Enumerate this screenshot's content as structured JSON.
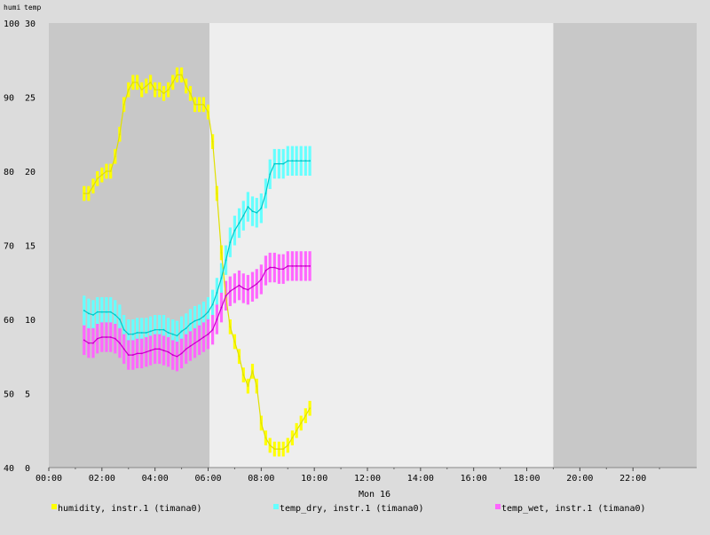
{
  "chart_data": {
    "type": "line",
    "axis_titles": {
      "left1": "humi",
      "left2": "temp"
    },
    "x_date_label": "Mon 16",
    "x_tick_labels": [
      "00:00",
      "02:00",
      "04:00",
      "06:00",
      "08:00",
      "10:00",
      "12:00",
      "14:00",
      "16:00",
      "18:00",
      "20:00",
      "22:00"
    ],
    "x_hour_range": [
      0,
      24.4
    ],
    "y_humi": {
      "ylim": [
        40,
        100
      ],
      "ticks": [
        "100",
        "90",
        "80",
        "70",
        "60",
        "50",
        "40"
      ]
    },
    "y_temp": {
      "ylim": [
        0,
        30
      ],
      "ticks": [
        "30",
        "25",
        "20",
        "15",
        "10",
        "5",
        "0"
      ]
    },
    "daylight_hours": [
      6.05,
      19.0
    ],
    "colors": {
      "background_night": "#c8c8c8",
      "background_day": "#eeeeee",
      "outer": "#dcdcdc",
      "humidity": "#ffff00",
      "humidity_line": "#e0e000",
      "temp_dry": "#66ffff",
      "temp_dry_line": "#00c8c8",
      "temp_wet": "#ff66ff",
      "temp_wet_line": "#c800c8"
    },
    "legend_position": "bottom",
    "series": [
      {
        "name": "humidity, instr.1 (timana0)",
        "axis": "humi",
        "color_key": "humidity",
        "x": [
          1.33,
          1.5,
          1.67,
          1.83,
          2.0,
          2.17,
          2.33,
          2.5,
          2.67,
          2.83,
          3.0,
          3.17,
          3.33,
          3.5,
          3.67,
          3.83,
          4.0,
          4.17,
          4.33,
          4.5,
          4.67,
          4.83,
          5.0,
          5.17,
          5.33,
          5.5,
          5.67,
          5.83,
          6.0,
          6.17,
          6.33,
          6.5,
          6.67,
          6.83,
          7.0,
          7.17,
          7.33,
          7.5,
          7.67,
          7.83,
          8.0,
          8.17,
          8.33,
          8.5,
          8.67,
          8.83,
          9.0,
          9.17,
          9.33,
          9.5,
          9.67,
          9.83
        ],
        "y": [
          77,
          77,
          78,
          79,
          79.5,
          80,
          80,
          82,
          85,
          89,
          91,
          92,
          92,
          91,
          91.5,
          92,
          91,
          91,
          90.5,
          91,
          92,
          93,
          93,
          91.5,
          90.5,
          89,
          89,
          89,
          88,
          84,
          77,
          69,
          63,
          59,
          57,
          55,
          52.5,
          51,
          53,
          51,
          46,
          44,
          43,
          42.5,
          42.5,
          42.5,
          43,
          44,
          45,
          46,
          47,
          48
        ],
        "err": [
          1,
          1,
          1,
          1,
          1,
          1,
          1,
          1,
          1,
          1,
          1,
          1,
          1,
          1,
          1,
          1,
          1,
          1,
          1,
          1,
          1,
          1,
          1,
          1,
          1,
          1,
          1,
          1,
          1,
          1,
          1,
          1,
          1,
          1,
          1,
          1,
          1,
          1,
          1,
          1,
          1,
          1,
          1,
          1,
          1,
          1,
          1,
          1,
          1,
          1,
          1,
          1
        ]
      },
      {
        "name": "temp_dry, instr.1 (timana0)",
        "axis": "temp",
        "color_key": "temp_dry",
        "x": [
          1.33,
          1.5,
          1.67,
          1.83,
          2.0,
          2.17,
          2.33,
          2.5,
          2.67,
          2.83,
          3.0,
          3.17,
          3.33,
          3.5,
          3.67,
          3.83,
          4.0,
          4.17,
          4.33,
          4.5,
          4.67,
          4.83,
          5.0,
          5.17,
          5.33,
          5.5,
          5.67,
          5.83,
          6.0,
          6.17,
          6.33,
          6.5,
          6.67,
          6.83,
          7.0,
          7.17,
          7.33,
          7.5,
          7.67,
          7.83,
          8.0,
          8.17,
          8.33,
          8.5,
          8.67,
          8.83,
          9.0,
          9.17,
          9.33,
          9.5,
          9.67,
          9.83
        ],
        "y": [
          10.6,
          10.4,
          10.3,
          10.5,
          10.5,
          10.5,
          10.5,
          10.3,
          10.0,
          9.3,
          9.0,
          9.0,
          9.1,
          9.1,
          9.1,
          9.2,
          9.3,
          9.3,
          9.3,
          9.1,
          9.0,
          8.9,
          9.2,
          9.4,
          9.7,
          9.9,
          10.0,
          10.2,
          10.5,
          11.0,
          11.8,
          12.8,
          14.0,
          15.2,
          16.0,
          16.5,
          17.0,
          17.6,
          17.3,
          17.2,
          17.5,
          18.5,
          19.8,
          20.5,
          20.5,
          20.5,
          20.7,
          20.7,
          20.7,
          20.7,
          20.7,
          20.7
        ],
        "err": [
          1,
          1,
          1,
          1,
          1,
          1,
          1,
          1,
          1,
          1,
          1,
          1,
          1,
          1,
          1,
          1,
          1,
          1,
          1,
          1,
          1,
          1,
          1,
          1,
          1,
          1,
          1,
          1,
          1,
          1,
          1,
          1,
          1,
          1,
          1,
          1,
          1,
          1,
          1,
          1,
          1,
          1,
          1,
          1,
          1,
          1,
          1,
          1,
          1,
          1,
          1,
          1
        ]
      },
      {
        "name": "temp_wet, instr.1 (timana0)",
        "axis": "temp",
        "color_key": "temp_wet",
        "x": [
          1.33,
          1.5,
          1.67,
          1.83,
          2.0,
          2.17,
          2.33,
          2.5,
          2.67,
          2.83,
          3.0,
          3.17,
          3.33,
          3.5,
          3.67,
          3.83,
          4.0,
          4.17,
          4.33,
          4.5,
          4.67,
          4.83,
          5.0,
          5.17,
          5.33,
          5.5,
          5.67,
          5.83,
          6.0,
          6.17,
          6.33,
          6.5,
          6.67,
          6.83,
          7.0,
          7.17,
          7.33,
          7.5,
          7.67,
          7.83,
          8.0,
          8.17,
          8.33,
          8.5,
          8.67,
          8.83,
          9.0,
          9.17,
          9.33,
          9.5,
          9.67,
          9.83
        ],
        "y": [
          8.6,
          8.4,
          8.4,
          8.7,
          8.8,
          8.8,
          8.8,
          8.7,
          8.4,
          8.0,
          7.6,
          7.6,
          7.7,
          7.7,
          7.8,
          7.9,
          8.0,
          8.0,
          7.9,
          7.8,
          7.6,
          7.5,
          7.7,
          8.0,
          8.2,
          8.4,
          8.6,
          8.8,
          9.0,
          9.3,
          10.0,
          10.8,
          11.6,
          11.9,
          12.1,
          12.3,
          12.1,
          12.0,
          12.2,
          12.4,
          12.7,
          13.3,
          13.5,
          13.5,
          13.4,
          13.4,
          13.6,
          13.6,
          13.6,
          13.6,
          13.6,
          13.6
        ],
        "err": [
          1,
          1,
          1,
          1,
          1,
          1,
          1,
          1,
          1,
          1,
          1,
          1,
          1,
          1,
          1,
          1,
          1,
          1,
          1,
          1,
          1,
          1,
          1,
          1,
          1,
          1,
          1,
          1,
          1,
          1,
          1,
          1,
          1,
          1,
          1,
          1,
          1,
          1,
          1,
          1,
          1,
          1,
          1,
          1,
          1,
          1,
          1,
          1,
          1,
          1,
          1,
          1
        ]
      }
    ]
  }
}
